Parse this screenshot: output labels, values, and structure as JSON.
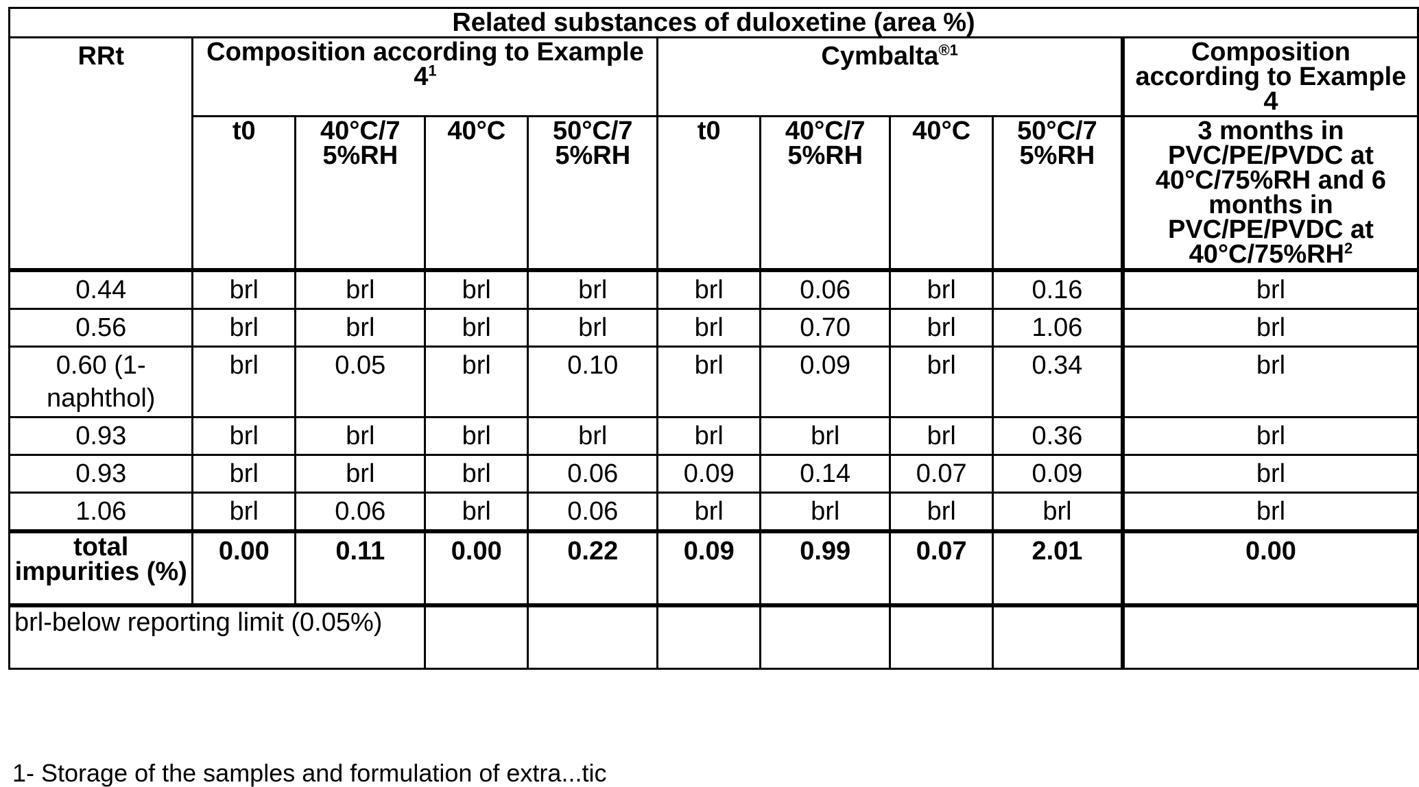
{
  "table": {
    "title": "Related substances of duloxetine (area %)",
    "header": {
      "rrt": "RRt",
      "group1": "Composition according to Example 4",
      "group1_sup": "1",
      "group2": "Cymbalta",
      "group2_sup": "®1",
      "group3": "Composition according to Example 4",
      "sub": [
        "t0",
        "40°C/7 5%RH",
        "40°C",
        "50°C/7 5%RH",
        "t0",
        "40°C/7 5%RH",
        "40°C",
        "50°C/7 5%RH"
      ],
      "group3_sub": "3 months in PVC/PE/PVDC at 40°C/75%RH and 6 months in PVC/PE/PVDC at 40°C/75%RH",
      "group3_sub_sup": "2"
    },
    "rows": [
      {
        "rrt": "0.44",
        "v": [
          "brl",
          "brl",
          "brl",
          "brl",
          "brl",
          "0.06",
          "brl",
          "0.16",
          "brl"
        ]
      },
      {
        "rrt": "0.56",
        "v": [
          "brl",
          "brl",
          "brl",
          "brl",
          "brl",
          "0.70",
          "brl",
          "1.06",
          "brl"
        ]
      },
      {
        "rrt": "0.60 (1-naphthol)",
        "v": [
          "brl",
          "0.05",
          "brl",
          "0.10",
          "brl",
          "0.09",
          "brl",
          "0.34",
          "brl"
        ]
      },
      {
        "rrt": "0.93",
        "v": [
          "brl",
          "brl",
          "brl",
          "brl",
          "brl",
          "brl",
          "brl",
          "0.36",
          "brl"
        ]
      },
      {
        "rrt": "0.93",
        "v": [
          "brl",
          "brl",
          "brl",
          "0.06",
          "0.09",
          "0.14",
          "0.07",
          "0.09",
          "brl"
        ]
      },
      {
        "rrt": "1.06",
        "v": [
          "brl",
          "0.06",
          "brl",
          "0.06",
          "brl",
          "brl",
          "brl",
          "brl",
          "brl"
        ]
      }
    ],
    "total": {
      "label": "total impurities (%)",
      "v": [
        "0.00",
        "0.11",
        "0.00",
        "0.22",
        "0.09",
        "0.99",
        "0.07",
        "2.01",
        "0.00"
      ]
    },
    "note": "brl-below reporting limit (0.05%)"
  },
  "footnote": "1- Storage of the samples and formulation of extra...tic"
}
